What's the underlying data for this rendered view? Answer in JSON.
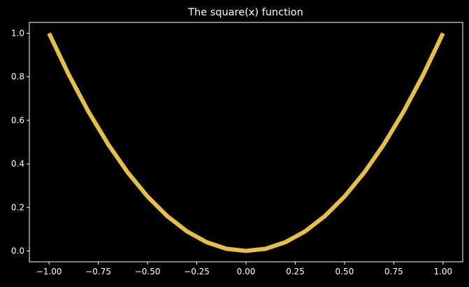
{
  "chart_data": {
    "type": "line",
    "title": "The square(x) function",
    "xlabel": "",
    "ylabel": "",
    "xlim": [
      -1.1,
      1.1
    ],
    "ylim": [
      -0.05,
      1.05
    ],
    "x_ticks": [
      -1.0,
      -0.75,
      -0.5,
      -0.25,
      0.0,
      0.25,
      0.5,
      0.75,
      1.0
    ],
    "x_tick_labels": [
      "−1.00",
      "−0.75",
      "−0.50",
      "−0.25",
      "0.00",
      "0.25",
      "0.50",
      "0.75",
      "1.00"
    ],
    "y_ticks": [
      0.0,
      0.2,
      0.4,
      0.6,
      0.8,
      1.0
    ],
    "y_tick_labels": [
      "0.0",
      "0.2",
      "0.4",
      "0.6",
      "0.8",
      "1.0"
    ],
    "grid": false,
    "legend": "none",
    "series": [
      {
        "color": "#e8c040",
        "x": [
          -1.0,
          -0.9,
          -0.8,
          -0.7,
          -0.6,
          -0.5,
          -0.4,
          -0.3,
          -0.2,
          -0.1,
          0.0,
          0.1,
          0.2,
          0.3,
          0.4,
          0.5,
          0.6,
          0.7,
          0.8,
          0.9,
          1.0
        ],
        "y": [
          1.0,
          0.81,
          0.64,
          0.49,
          0.36,
          0.25,
          0.16,
          0.09,
          0.04,
          0.01,
          0.0,
          0.01,
          0.04,
          0.09,
          0.16,
          0.25,
          0.36,
          0.49,
          0.64,
          0.81,
          1.0
        ]
      }
    ],
    "colors": {
      "background": "#000000",
      "axes": "#ffffff",
      "text": "#ffffff"
    }
  }
}
